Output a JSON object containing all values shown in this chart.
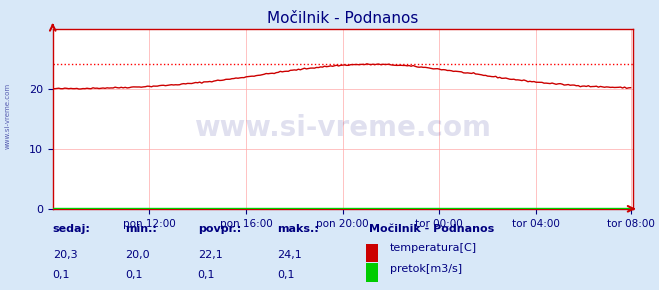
{
  "title": "Močilnik - Podnanos",
  "title_color": "#000080",
  "bg_color": "#d8e8f8",
  "plot_bg_color": "#ffffff",
  "grid_color": "#ffaaaa",
  "axis_color": "#cc0000",
  "xlabel_color": "#000080",
  "ylabel_color": "#000080",
  "x_tick_labels": [
    "pon 12:00",
    "pon 16:00",
    "pon 20:00",
    "tor 00:00",
    "tor 04:00",
    "tor 08:00"
  ],
  "y_ticks": [
    0,
    10,
    20
  ],
  "ylim": [
    0,
    30
  ],
  "xlim": [
    0,
    288
  ],
  "temp_color": "#cc0000",
  "flow_color": "#00cc00",
  "max_line_color": "#ff0000",
  "max_value": 24.1,
  "watermark_text": "www.si-vreme.com",
  "watermark_color": "#000080",
  "watermark_alpha": 0.12,
  "legend_title": "Močilnik - Podnanos",
  "legend_title_color": "#000080",
  "legend_labels": [
    "temperatura[C]",
    "pretok[m3/s]"
  ],
  "legend_colors": [
    "#cc0000",
    "#00cc00"
  ],
  "table_headers": [
    "sedaj:",
    "min.:",
    "povpr.:",
    "maks.:"
  ],
  "table_row1": [
    "20,3",
    "20,0",
    "22,1",
    "24,1"
  ],
  "table_row2": [
    "0,1",
    "0,1",
    "0,1",
    "0,1"
  ],
  "table_color": "#000080",
  "sidebar_text": "www.si-vreme.com",
  "sidebar_color": "#000080"
}
